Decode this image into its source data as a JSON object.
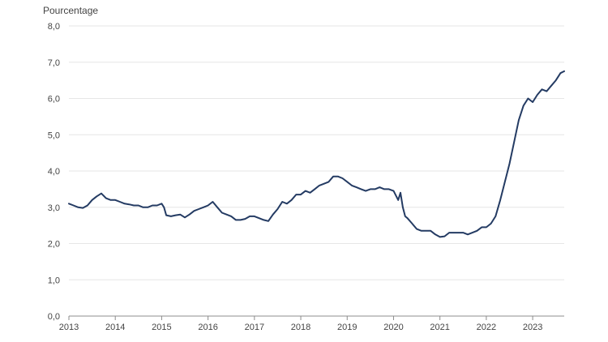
{
  "chart_data": {
    "type": "line",
    "ylabel": "Pourcentage",
    "ylim": [
      0,
      8
    ],
    "xlim": [
      2013.0,
      2023.68
    ],
    "y_ticks": [
      {
        "value": 0,
        "label": "0,0"
      },
      {
        "value": 1,
        "label": "1,0"
      },
      {
        "value": 2,
        "label": "2,0"
      },
      {
        "value": 3,
        "label": "3,0"
      },
      {
        "value": 4,
        "label": "4,0"
      },
      {
        "value": 5,
        "label": "5,0"
      },
      {
        "value": 6,
        "label": "6,0"
      },
      {
        "value": 7,
        "label": "7,0"
      },
      {
        "value": 8,
        "label": "8,0"
      }
    ],
    "x_ticks": [
      {
        "value": 2013,
        "label": "2013"
      },
      {
        "value": 2014,
        "label": "2014"
      },
      {
        "value": 2015,
        "label": "2015"
      },
      {
        "value": 2016,
        "label": "2016"
      },
      {
        "value": 2017,
        "label": "2017"
      },
      {
        "value": 2018,
        "label": "2018"
      },
      {
        "value": 2019,
        "label": "2019"
      },
      {
        "value": 2020,
        "label": "2020"
      },
      {
        "value": 2021,
        "label": "2021"
      },
      {
        "value": 2022,
        "label": "2022"
      },
      {
        "value": 2023,
        "label": "2023"
      }
    ],
    "grid": true,
    "line_color": "#243b63",
    "series": [
      {
        "x": [
          2013.0,
          2013.1,
          2013.2,
          2013.3,
          2013.4,
          2013.5,
          2013.6,
          2013.7,
          2013.8,
          2013.9,
          2014.0,
          2014.1,
          2014.2,
          2014.3,
          2014.4,
          2014.5,
          2014.6,
          2014.7,
          2014.8,
          2014.9,
          2015.0,
          2015.05,
          2015.1,
          2015.2,
          2015.3,
          2015.4,
          2015.5,
          2015.6,
          2015.7,
          2015.8,
          2015.9,
          2016.0,
          2016.1,
          2016.2,
          2016.3,
          2016.4,
          2016.5,
          2016.6,
          2016.7,
          2016.8,
          2016.9,
          2017.0,
          2017.1,
          2017.2,
          2017.3,
          2017.4,
          2017.5,
          2017.6,
          2017.7,
          2017.8,
          2017.9,
          2018.0,
          2018.1,
          2018.2,
          2018.3,
          2018.4,
          2018.5,
          2018.6,
          2018.7,
          2018.8,
          2018.9,
          2019.0,
          2019.1,
          2019.2,
          2019.3,
          2019.4,
          2019.5,
          2019.6,
          2019.7,
          2019.8,
          2019.9,
          2020.0,
          2020.1,
          2020.15,
          2020.2,
          2020.25,
          2020.3,
          2020.4,
          2020.5,
          2020.6,
          2020.7,
          2020.8,
          2020.9,
          2021.0,
          2021.1,
          2021.2,
          2021.3,
          2021.4,
          2021.5,
          2021.6,
          2021.7,
          2021.8,
          2021.9,
          2022.0,
          2022.1,
          2022.2,
          2022.3,
          2022.4,
          2022.5,
          2022.6,
          2022.7,
          2022.8,
          2022.9,
          2023.0,
          2023.1,
          2023.2,
          2023.3,
          2023.4,
          2023.5,
          2023.6,
          2023.68
        ],
        "y": [
          3.1,
          3.05,
          3.0,
          2.98,
          3.05,
          3.2,
          3.3,
          3.38,
          3.25,
          3.2,
          3.2,
          3.15,
          3.1,
          3.08,
          3.05,
          3.05,
          3.0,
          3.0,
          3.05,
          3.05,
          3.1,
          3.0,
          2.78,
          2.75,
          2.78,
          2.8,
          2.72,
          2.8,
          2.9,
          2.95,
          3.0,
          3.05,
          3.15,
          3.0,
          2.85,
          2.8,
          2.75,
          2.65,
          2.65,
          2.68,
          2.75,
          2.75,
          2.7,
          2.65,
          2.62,
          2.8,
          2.95,
          3.15,
          3.1,
          3.2,
          3.35,
          3.35,
          3.45,
          3.4,
          3.5,
          3.6,
          3.65,
          3.7,
          3.85,
          3.85,
          3.8,
          3.7,
          3.6,
          3.55,
          3.5,
          3.45,
          3.5,
          3.5,
          3.55,
          3.5,
          3.5,
          3.45,
          3.2,
          3.4,
          3.0,
          2.75,
          2.7,
          2.55,
          2.4,
          2.35,
          2.35,
          2.35,
          2.25,
          2.18,
          2.2,
          2.3,
          2.3,
          2.3,
          2.3,
          2.25,
          2.3,
          2.35,
          2.45,
          2.45,
          2.55,
          2.75,
          3.2,
          3.7,
          4.2,
          4.8,
          5.4,
          5.8,
          6.0,
          5.9,
          6.1,
          6.25,
          6.2,
          6.35,
          6.5,
          6.7,
          6.75
        ]
      }
    ]
  }
}
